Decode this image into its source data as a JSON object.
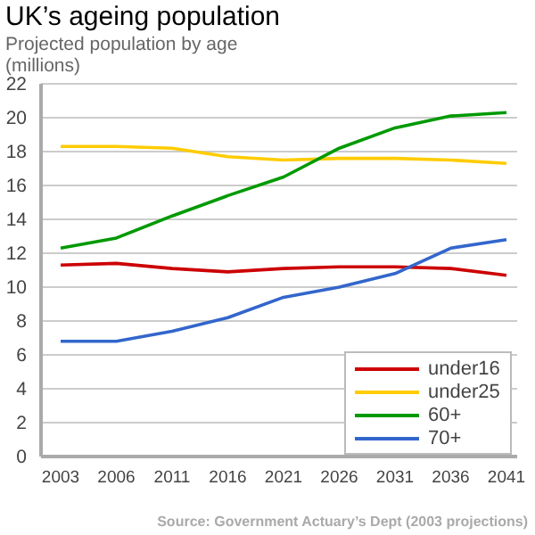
{
  "chart_data": {
    "type": "line",
    "title": "UK’s ageing population",
    "subtitle": "Projected population by age",
    "ylabel": "(millions)",
    "categories": [
      "2003",
      "2006",
      "2011",
      "2016",
      "2021",
      "2026",
      "2031",
      "2036",
      "2041"
    ],
    "series": [
      {
        "name": "under16",
        "color": "#cc0000",
        "values": [
          11.3,
          11.4,
          11.1,
          10.9,
          11.1,
          11.2,
          11.2,
          11.1,
          10.7
        ]
      },
      {
        "name": "under25",
        "color": "#ffcc00",
        "values": [
          18.3,
          18.3,
          18.2,
          17.7,
          17.5,
          17.6,
          17.6,
          17.5,
          17.3
        ]
      },
      {
        "name": "60+",
        "color": "#009900",
        "values": [
          12.3,
          12.9,
          14.2,
          15.4,
          16.5,
          18.2,
          19.4,
          20.1,
          20.3
        ]
      },
      {
        "name": "70+",
        "color": "#3366cc",
        "values": [
          6.8,
          6.8,
          7.4,
          8.2,
          9.4,
          10.0,
          10.8,
          12.3,
          12.8
        ]
      }
    ],
    "ylim": [
      0,
      22
    ],
    "yticks": [
      0,
      2,
      4,
      6,
      8,
      10,
      12,
      14,
      16,
      18,
      20,
      22
    ],
    "grid": "y",
    "legend": "bottom right",
    "marker": "none",
    "line_style": "solid",
    "annotations": [
      "Source: Government Actuary’s Dept (2003 projections)"
    ]
  }
}
